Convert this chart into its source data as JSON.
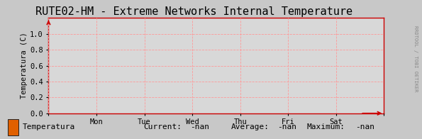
{
  "title": "RUTE02-HM - Extreme Networks Internal Temperature",
  "ylabel": "Temperatura (C)",
  "background_color": "#c8c8c8",
  "plot_bg_color": "#d8d8d8",
  "grid_color": "#ff9999",
  "grid_style": "--",
  "ylim": [
    0.0,
    1.2
  ],
  "yticks": [
    0.0,
    0.2,
    0.4,
    0.6,
    0.8,
    1.0
  ],
  "xtick_labels": [
    "",
    "Mon",
    "Tue",
    "Wed",
    "Thu",
    "Fri",
    "Sat",
    ""
  ],
  "arrow_color": "#cc0000",
  "legend_label": "Temperatura",
  "legend_color": "#e06000",
  "legend_current": "Current:",
  "legend_current_val": "-nan",
  "legend_avg": "Average:",
  "legend_avg_val": "-nan",
  "legend_max": "Maximum:",
  "legend_max_val": "-nan",
  "right_label": "RRDTOOL / TOBI OETIKER",
  "title_fontsize": 11,
  "axis_fontsize": 7.5,
  "legend_fontsize": 8,
  "font_family": "monospace"
}
